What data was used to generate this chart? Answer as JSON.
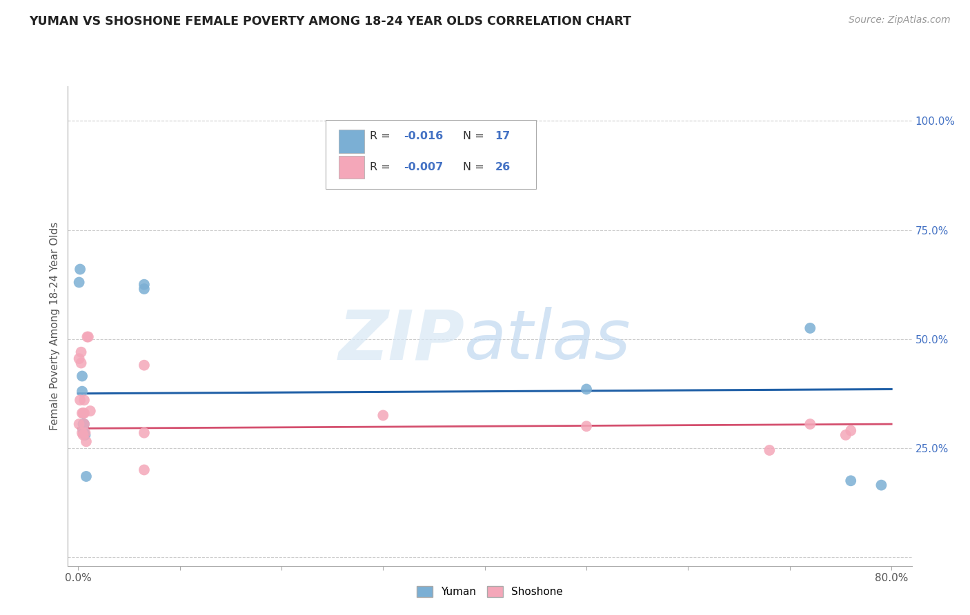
{
  "title": "YUMAN VS SHOSHONE FEMALE POVERTY AMONG 18-24 YEAR OLDS CORRELATION CHART",
  "source_text": "Source: ZipAtlas.com",
  "ylabel": "Female Poverty Among 18-24 Year Olds",
  "xlim": [
    -0.01,
    0.82
  ],
  "ylim": [
    -0.02,
    1.08
  ],
  "xticks": [
    0.0,
    0.1,
    0.2,
    0.3,
    0.4,
    0.5,
    0.6,
    0.7,
    0.8
  ],
  "xticklabels": [
    "0.0%",
    "",
    "",
    "",
    "",
    "",
    "",
    "",
    "80.0%"
  ],
  "ytick_positions": [
    0.0,
    0.25,
    0.5,
    0.75,
    1.0
  ],
  "ytick_labels_right": [
    "",
    "25.0%",
    "50.0%",
    "75.0%",
    "100.0%"
  ],
  "grid_color": "#cccccc",
  "background_color": "#ffffff",
  "yuman_color": "#7bafd4",
  "shoshone_color": "#f4a7b9",
  "yuman_line_color": "#1f5fa6",
  "shoshone_line_color": "#d44f6e",
  "yuman_line_y0": 0.375,
  "yuman_line_y1": 0.385,
  "shoshone_line_y0": 0.295,
  "shoshone_line_y1": 0.305,
  "yuman_x": [
    0.001,
    0.002,
    0.004,
    0.004,
    0.005,
    0.005,
    0.006,
    0.006,
    0.007,
    0.008,
    0.065,
    0.065,
    0.5,
    0.72,
    0.76,
    0.79
  ],
  "yuman_y": [
    0.63,
    0.66,
    0.415,
    0.38,
    0.305,
    0.29,
    0.305,
    0.285,
    0.28,
    0.185,
    0.625,
    0.615,
    0.385,
    0.525,
    0.175,
    0.165
  ],
  "shoshone_x": [
    0.001,
    0.001,
    0.002,
    0.003,
    0.003,
    0.004,
    0.004,
    0.005,
    0.005,
    0.006,
    0.006,
    0.006,
    0.007,
    0.008,
    0.009,
    0.01,
    0.012,
    0.065,
    0.065,
    0.065,
    0.3,
    0.5,
    0.68,
    0.72,
    0.755,
    0.76
  ],
  "shoshone_y": [
    0.455,
    0.305,
    0.36,
    0.47,
    0.445,
    0.33,
    0.285,
    0.33,
    0.28,
    0.36,
    0.33,
    0.305,
    0.285,
    0.265,
    0.505,
    0.505,
    0.335,
    0.44,
    0.285,
    0.2,
    0.325,
    0.3,
    0.245,
    0.305,
    0.28,
    0.29
  ],
  "watermark_zip_color": "#d8e8f5",
  "watermark_atlas_color": "#c0d8f0"
}
